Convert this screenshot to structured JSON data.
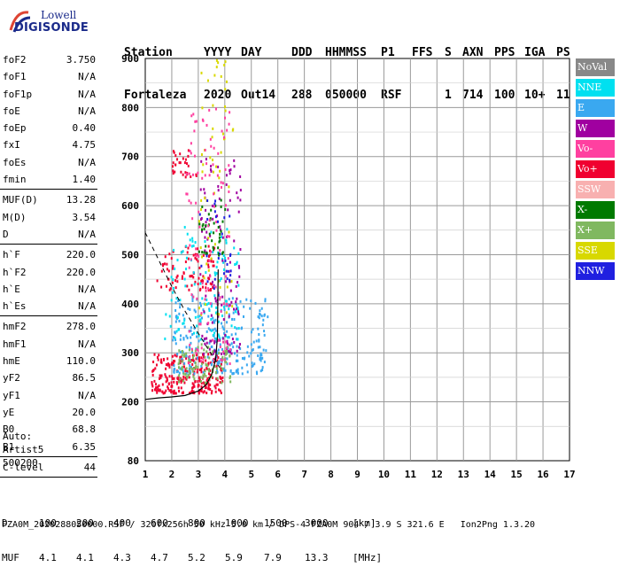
{
  "logo": {
    "line1": "Lowell",
    "line2": "DIGISONDE"
  },
  "header": {
    "row1": [
      "Station",
      "YYYY",
      "DAY",
      "DDD",
      "HHMMSS",
      "P1",
      "FFS",
      "S",
      "AXN",
      "PPS",
      "IGA",
      "PS"
    ],
    "row2": [
      "Fortaleza",
      "2020",
      "Out14",
      "288",
      "050000",
      "RSF",
      "",
      "1",
      "714",
      "100",
      "10+",
      "11"
    ]
  },
  "params": [
    {
      "k": "foF2",
      "v": "3.750"
    },
    {
      "k": "foF1",
      "v": "N/A"
    },
    {
      "k": "foF1p",
      "v": "N/A"
    },
    {
      "k": "foE",
      "v": "N/A"
    },
    {
      "k": "foEp",
      "v": "0.40"
    },
    {
      "k": "fxI",
      "v": "4.75"
    },
    {
      "k": "foEs",
      "v": "N/A"
    },
    {
      "k": "fmin",
      "v": "1.40"
    },
    {
      "sep": true
    },
    {
      "k": "MUF(D)",
      "v": "13.28"
    },
    {
      "k": "M(D)",
      "v": "3.54"
    },
    {
      "k": "D",
      "v": "N/A"
    },
    {
      "sep": true
    },
    {
      "k": "h`F",
      "v": "220.0"
    },
    {
      "k": "h`F2",
      "v": "220.0"
    },
    {
      "k": "h`E",
      "v": "N/A"
    },
    {
      "k": "h`Es",
      "v": "N/A"
    },
    {
      "sep": true
    },
    {
      "k": "hmF2",
      "v": "278.0"
    },
    {
      "k": "hmF1",
      "v": "N/A"
    },
    {
      "k": "hmE",
      "v": "110.0"
    },
    {
      "k": "yF2",
      "v": "86.5"
    },
    {
      "k": "yF1",
      "v": "N/A"
    },
    {
      "k": "yE",
      "v": "20.0"
    },
    {
      "k": "B0",
      "v": "68.8"
    },
    {
      "k": "B1",
      "v": "6.35"
    },
    {
      "sep": true
    },
    {
      "k": "C-level",
      "v": "44"
    },
    {
      "sep": true
    }
  ],
  "auto": {
    "line1": "Auto:",
    "line2": "Artist5",
    "line3": "500200"
  },
  "legend": [
    {
      "label": "NoVal",
      "color": "#888888"
    },
    {
      "label": "NNE",
      "color": "#00e0f0"
    },
    {
      "label": "E",
      "color": "#3aa8f0"
    },
    {
      "label": "W",
      "color": "#a000a0"
    },
    {
      "label": "Vo-",
      "color": "#ff40a0"
    },
    {
      "label": "Vo+",
      "color": "#f00030"
    },
    {
      "label": "SSW",
      "color": "#f8b0b0"
    },
    {
      "label": "X-",
      "color": "#007a00"
    },
    {
      "label": "X+",
      "color": "#80b860"
    },
    {
      "label": "SSE",
      "color": "#d8d800"
    },
    {
      "label": "NNW",
      "color": "#2020e0"
    }
  ],
  "chart_data": {
    "type": "scatter",
    "x_ticks": [
      "1",
      "2",
      "3",
      "4",
      "5",
      "6",
      "7",
      "8",
      "9",
      "10",
      "11",
      "12",
      "13",
      "14",
      "15",
      "16",
      "17"
    ],
    "y_ticks": [
      "80",
      "200",
      "300",
      "400",
      "500",
      "600",
      "700",
      "800",
      "900"
    ],
    "xlim": [
      1,
      17
    ],
    "ylim": [
      80,
      900
    ],
    "grid": true,
    "legend_position": "right",
    "profile_curve": [
      [
        1.0,
        205
      ],
      [
        1.5,
        208
      ],
      [
        2.0,
        210
      ],
      [
        2.5,
        213
      ],
      [
        3.0,
        222
      ],
      [
        3.3,
        235
      ],
      [
        3.5,
        255
      ],
      [
        3.65,
        285
      ],
      [
        3.72,
        330
      ],
      [
        3.75,
        470
      ]
    ],
    "dashed_curve": [
      [
        1.0,
        545
      ],
      [
        1.5,
        490
      ],
      [
        2.0,
        435
      ],
      [
        2.5,
        385
      ],
      [
        3.0,
        340
      ],
      [
        3.4,
        305
      ],
      [
        3.7,
        280
      ],
      [
        3.8,
        270
      ]
    ],
    "clusters": [
      {
        "name": "Vo+",
        "color": "#f00030",
        "f": [
          1.2,
          3.9
        ],
        "h": [
          220,
          300
        ],
        "n": 260
      },
      {
        "name": "Vo+ upper",
        "color": "#f00030",
        "f": [
          1.4,
          3.6
        ],
        "h": [
          430,
          520
        ],
        "n": 90
      },
      {
        "name": "Vo+ top",
        "color": "#f00030",
        "f": [
          2.0,
          3.0
        ],
        "h": [
          660,
          720
        ],
        "n": 30
      },
      {
        "name": "E",
        "color": "#3aa8f0",
        "f": [
          2.0,
          5.6
        ],
        "h": [
          260,
          420
        ],
        "n": 260
      },
      {
        "name": "NNE",
        "color": "#00e0f0",
        "f": [
          1.7,
          4.5
        ],
        "h": [
          330,
          560
        ],
        "n": 120
      },
      {
        "name": "W",
        "color": "#a000a0",
        "f": [
          3.0,
          4.6
        ],
        "h": [
          300,
          700
        ],
        "n": 120
      },
      {
        "name": "X+",
        "color": "#80b860",
        "f": [
          2.2,
          4.2
        ],
        "h": [
          240,
          320
        ],
        "n": 100
      },
      {
        "name": "X-",
        "color": "#007a00",
        "f": [
          3.0,
          4.0
        ],
        "h": [
          500,
          620
        ],
        "n": 40
      },
      {
        "name": "SSE",
        "color": "#d8d800",
        "f": [
          3.0,
          4.3
        ],
        "h": [
          380,
          900
        ],
        "n": 60
      },
      {
        "name": "Vo-",
        "color": "#ff40a0",
        "f": [
          2.5,
          4.2
        ],
        "h": [
          280,
          800
        ],
        "n": 120
      },
      {
        "name": "NNW",
        "color": "#2020e0",
        "f": [
          3.0,
          4.2
        ],
        "h": [
          420,
          620
        ],
        "n": 30
      }
    ]
  },
  "bottom": {
    "row_d": [
      "D",
      "100",
      "200",
      "400",
      "600",
      "800",
      "1000",
      "1500",
      "3000",
      "[km]"
    ],
    "row_muf": [
      "MUF",
      "4.1",
      "4.1",
      "4.3",
      "4.7",
      "5.2",
      "5.9",
      "7.9",
      "13.3",
      "[MHz]"
    ]
  },
  "footer": "FZA0M_2020288050000.RSF / 320fx256h 50 kHz 5.0 km / DPS-4 FZA0M 904 / 3.9 S 321.6 E   Ion2Png 1.3.20"
}
